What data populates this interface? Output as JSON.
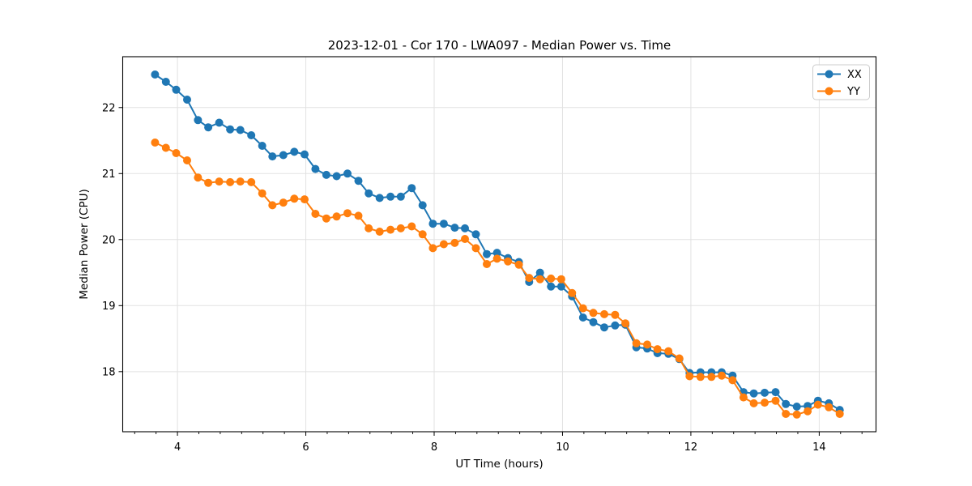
{
  "chart_data": {
    "type": "line",
    "title": "2023-12-01 - Cor 170 - LWA097 - Median Power vs. Time",
    "xlabel": "UT Time (hours)",
    "ylabel": "Median Power (CPU)",
    "xlim": [
      3.147,
      14.885
    ],
    "ylim": [
      17.09,
      22.77
    ],
    "xticks": [
      4,
      6,
      8,
      10,
      12,
      14
    ],
    "xtick_labels": [
      "4",
      "6",
      "8",
      "10",
      "12",
      "14"
    ],
    "yticks": [
      18,
      19,
      20,
      21,
      22
    ],
    "ytick_labels": [
      "18",
      "19",
      "20",
      "21",
      "22"
    ],
    "x_minor_step": 0.33333,
    "grid": true,
    "grid_color": "#e2e2e2",
    "legend_position": "upper right",
    "x": [
      3.65,
      3.82,
      3.98,
      4.15,
      4.32,
      4.48,
      4.65,
      4.82,
      4.98,
      5.15,
      5.32,
      5.48,
      5.65,
      5.82,
      5.98,
      6.15,
      6.32,
      6.48,
      6.65,
      6.82,
      6.98,
      7.15,
      7.32,
      7.48,
      7.65,
      7.82,
      7.98,
      8.15,
      8.32,
      8.48,
      8.65,
      8.82,
      8.98,
      9.15,
      9.32,
      9.48,
      9.65,
      9.82,
      9.98,
      10.15,
      10.32,
      10.48,
      10.65,
      10.82,
      10.98,
      11.15,
      11.32,
      11.48,
      11.65,
      11.82,
      11.98,
      12.15,
      12.32,
      12.48,
      12.65,
      12.82,
      12.98,
      13.15,
      13.32,
      13.48,
      13.65,
      13.82,
      13.98,
      14.15,
      14.32
    ],
    "series": [
      {
        "name": "XX",
        "color": "#1f77b4",
        "values": [
          22.5,
          22.39,
          22.27,
          22.12,
          21.81,
          21.7,
          21.77,
          21.67,
          21.66,
          21.58,
          21.42,
          21.26,
          21.28,
          21.33,
          21.29,
          21.07,
          20.98,
          20.96,
          21.0,
          20.89,
          20.7,
          20.63,
          20.65,
          20.65,
          20.78,
          20.52,
          20.24,
          20.24,
          20.18,
          20.17,
          20.08,
          19.78,
          19.8,
          19.72,
          19.66,
          19.36,
          19.5,
          19.29,
          19.29,
          19.14,
          18.82,
          18.75,
          18.67,
          18.7,
          18.71,
          18.37,
          18.35,
          18.28,
          18.27,
          18.19,
          17.98,
          17.99,
          17.99,
          17.99,
          17.94,
          17.69,
          17.67,
          17.68,
          17.69,
          17.51,
          17.47,
          17.48,
          17.56,
          17.52,
          17.42
        ]
      },
      {
        "name": "YY",
        "color": "#ff7f0e",
        "values": [
          21.47,
          21.39,
          21.31,
          21.2,
          20.94,
          20.86,
          20.88,
          20.87,
          20.88,
          20.87,
          20.7,
          20.52,
          20.56,
          20.62,
          20.61,
          20.39,
          20.32,
          20.35,
          20.4,
          20.36,
          20.17,
          20.12,
          20.15,
          20.17,
          20.2,
          20.08,
          19.87,
          19.93,
          19.95,
          20.01,
          19.87,
          19.63,
          19.71,
          19.67,
          19.62,
          19.42,
          19.4,
          19.41,
          19.4,
          19.19,
          18.96,
          18.89,
          18.87,
          18.86,
          18.73,
          18.43,
          18.41,
          18.34,
          18.31,
          18.2,
          17.93,
          17.92,
          17.92,
          17.94,
          17.87,
          17.61,
          17.52,
          17.53,
          17.56,
          17.36,
          17.35,
          17.4,
          17.5,
          17.46,
          17.36
        ]
      }
    ]
  }
}
